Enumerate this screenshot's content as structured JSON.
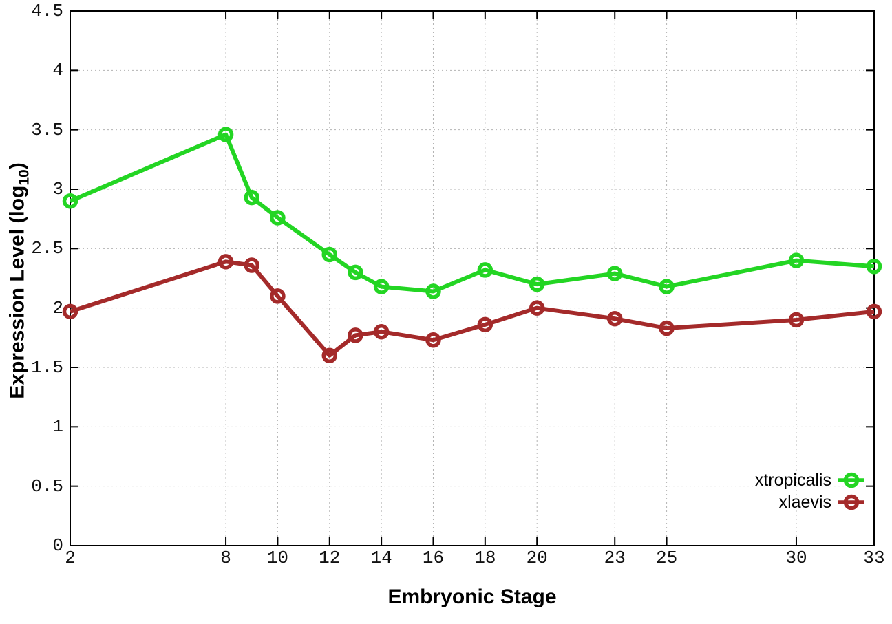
{
  "chart_data": {
    "type": "line",
    "title": "",
    "xlabel": "Embryonic Stage",
    "ylabel": "Expression Level (log10)",
    "ylabel_main": "Expression Level (log",
    "ylabel_sub": "10",
    "ylabel_close": ")",
    "xlim": [
      2,
      33
    ],
    "ylim": [
      0,
      4.5
    ],
    "grid": true,
    "legend_position": "bottom-right",
    "x": [
      2,
      8,
      9,
      10,
      12,
      13,
      14,
      16,
      18,
      20,
      23,
      25,
      30,
      33
    ],
    "x_tick_values": [
      2,
      8,
      10,
      12,
      14,
      16,
      18,
      20,
      23,
      25,
      30,
      33
    ],
    "x_tick_labels": [
      "2",
      "8",
      "10",
      "12",
      "14",
      "16",
      "18",
      "20",
      "23",
      "25",
      "30",
      "33"
    ],
    "y_tick_values": [
      0,
      0.5,
      1,
      1.5,
      2,
      2.5,
      3,
      3.5,
      4,
      4.5
    ],
    "y_tick_labels": [
      "0",
      "0.5",
      "1",
      "1.5",
      "2",
      "2.5",
      "3",
      "3.5",
      "4",
      "4.5"
    ],
    "series": [
      {
        "name": "xtropicalis",
        "color": "#23d523",
        "values": [
          2.9,
          3.46,
          2.93,
          2.76,
          2.45,
          2.3,
          2.18,
          2.14,
          2.32,
          2.2,
          2.29,
          2.18,
          2.4,
          2.35
        ]
      },
      {
        "name": "xlaevis",
        "color": "#a42a2a",
        "values": [
          1.97,
          2.39,
          2.36,
          2.1,
          1.6,
          1.77,
          1.8,
          1.73,
          1.86,
          2.0,
          1.91,
          1.83,
          1.9,
          1.97
        ]
      }
    ],
    "colors": {
      "axis": "#000000",
      "grid": "#b3b3b3",
      "text": "#111111"
    }
  }
}
